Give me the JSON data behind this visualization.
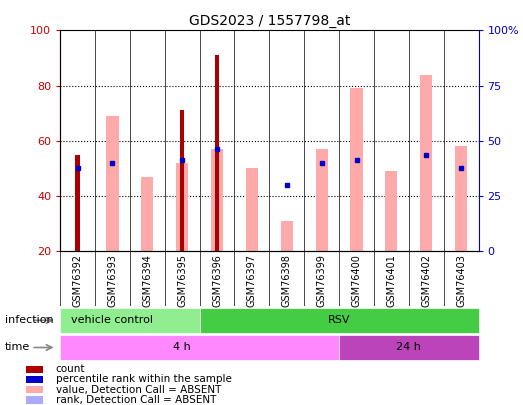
{
  "title": "GDS2023 / 1557798_at",
  "samples": [
    "GSM76392",
    "GSM76393",
    "GSM76394",
    "GSM76395",
    "GSM76396",
    "GSM76397",
    "GSM76398",
    "GSM76399",
    "GSM76400",
    "GSM76401",
    "GSM76402",
    "GSM76403"
  ],
  "count_values": [
    55,
    null,
    null,
    71,
    91,
    null,
    null,
    null,
    null,
    null,
    null,
    null
  ],
  "pink_bar_values": [
    null,
    69,
    47,
    52,
    57,
    50,
    31,
    57,
    79,
    49,
    84,
    58
  ],
  "blue_square_y": [
    50,
    52,
    null,
    53,
    57,
    null,
    44,
    52,
    53,
    null,
    55,
    50
  ],
  "light_blue_bar_values": [
    null,
    null,
    null,
    null,
    null,
    null,
    null,
    null,
    null,
    null,
    null,
    null
  ],
  "ylim": [
    20,
    100
  ],
  "y2lim": [
    0,
    100
  ],
  "yticks_left": [
    20,
    40,
    60,
    80,
    100
  ],
  "yticks_right": [
    0,
    25,
    50,
    75,
    100
  ],
  "left_axis_color": "#cc0000",
  "right_axis_color": "#0000cc",
  "count_color": "#aa0000",
  "pink_color": "#ffaaaa",
  "blue_square_color": "#0000cc",
  "light_blue_color": "#aaaaff",
  "infection_vc_color": "#90ee90",
  "infection_rsv_color": "#44cc44",
  "time_4h_color": "#ff88ff",
  "time_24h_color": "#bb44bb",
  "xtick_bg_color": "#cccccc",
  "border_color": "#000000"
}
